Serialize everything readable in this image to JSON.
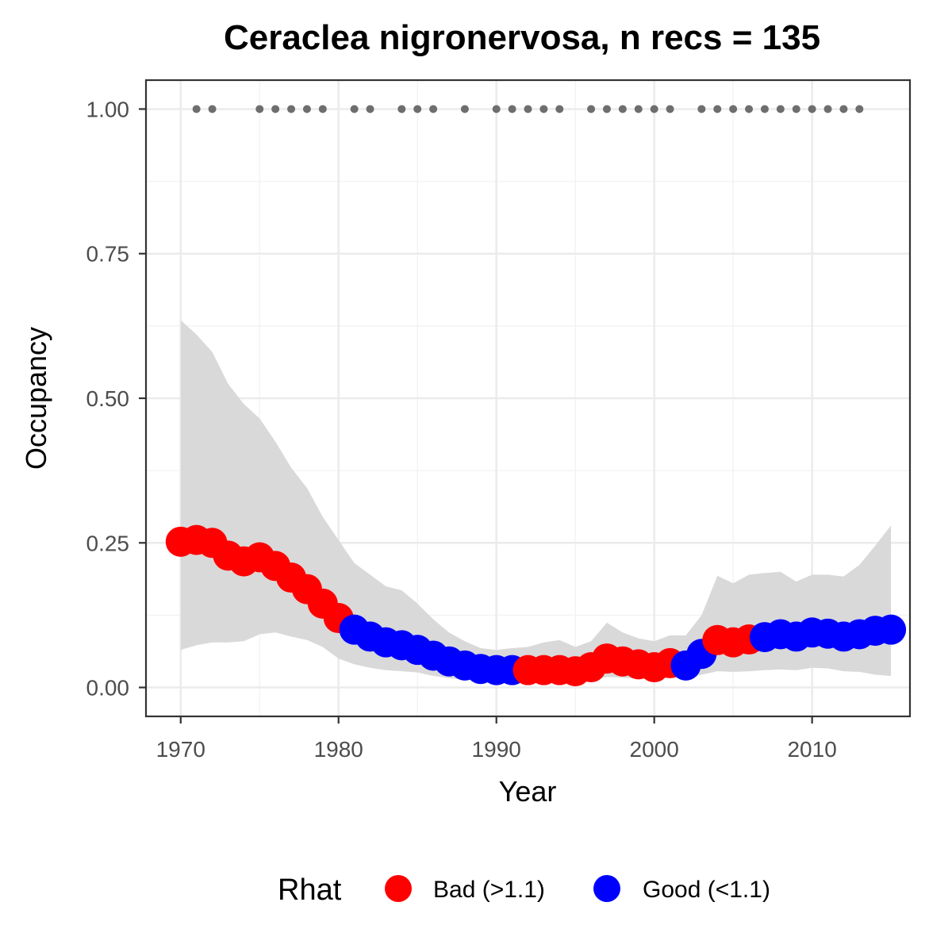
{
  "chart_data": {
    "type": "scatter",
    "title": "Ceraclea nigronervosa, n recs = 135",
    "xlabel": "Year",
    "ylabel": "Occupancy",
    "xlim": [
      1967.8,
      2016.2
    ],
    "ylim": [
      -0.05,
      1.05
    ],
    "x_ticks": [
      1970,
      1980,
      1990,
      2000,
      2010
    ],
    "x_tick_labels": [
      "1970",
      "1980",
      "1990",
      "2000",
      "2010"
    ],
    "y_ticks": [
      0,
      0.25,
      0.5,
      0.75,
      1.0
    ],
    "y_tick_labels": [
      "0.00",
      "0.25",
      "0.50",
      "0.75",
      "1.00"
    ],
    "grid": true,
    "legend": {
      "title": "Rhat",
      "position": "bottom",
      "entries": [
        {
          "label": "Bad (>1.1)",
          "color": "#ff0000"
        },
        {
          "label": "Good (<1.1)",
          "color": "#0000ff"
        }
      ]
    },
    "colors": {
      "bad": "#ff0000",
      "good": "#0000ff",
      "ribbon": "#d9d9d9",
      "records": "#6e6e6e"
    },
    "series": [
      {
        "name": "Rhat",
        "x": [
          1970,
          1971,
          1972,
          1973,
          1974,
          1975,
          1976,
          1977,
          1978,
          1979,
          1980,
          1981,
          1982,
          1983,
          1984,
          1985,
          1986,
          1987,
          1988,
          1989,
          1990,
          1991,
          1992,
          1993,
          1994,
          1995,
          1996,
          1997,
          1998,
          1999,
          2000,
          2001,
          2002,
          2003,
          2004,
          2005,
          2006,
          2007,
          2008,
          2009,
          2010,
          2011,
          2012,
          2013,
          2014,
          2015
        ],
        "y": [
          0.252,
          0.255,
          0.25,
          0.228,
          0.218,
          0.225,
          0.21,
          0.19,
          0.17,
          0.145,
          0.12,
          0.1,
          0.088,
          0.078,
          0.073,
          0.065,
          0.055,
          0.045,
          0.038,
          0.032,
          0.03,
          0.03,
          0.03,
          0.03,
          0.03,
          0.028,
          0.035,
          0.05,
          0.045,
          0.04,
          0.035,
          0.042,
          0.038,
          0.058,
          0.082,
          0.078,
          0.083,
          0.087,
          0.092,
          0.088,
          0.095,
          0.093,
          0.088,
          0.092,
          0.098,
          0.1
        ],
        "status": [
          "Bad",
          "Bad",
          "Bad",
          "Bad",
          "Bad",
          "Bad",
          "Bad",
          "Bad",
          "Bad",
          "Bad",
          "Bad",
          "Good",
          "Good",
          "Good",
          "Good",
          "Good",
          "Good",
          "Good",
          "Good",
          "Good",
          "Good",
          "Good",
          "Bad",
          "Bad",
          "Bad",
          "Bad",
          "Bad",
          "Bad",
          "Bad",
          "Bad",
          "Bad",
          "Bad",
          "Good",
          "Good",
          "Bad",
          "Bad",
          "Bad",
          "Good",
          "Good",
          "Good",
          "Good",
          "Good",
          "Good",
          "Good",
          "Good",
          "Good"
        ],
        "lower": [
          0.065,
          0.073,
          0.078,
          0.078,
          0.08,
          0.092,
          0.095,
          0.088,
          0.082,
          0.07,
          0.05,
          0.04,
          0.034,
          0.03,
          0.028,
          0.026,
          0.02,
          0.016,
          0.013,
          0.012,
          0.012,
          0.013,
          0.013,
          0.013,
          0.012,
          0.011,
          0.013,
          0.018,
          0.017,
          0.015,
          0.014,
          0.017,
          0.016,
          0.022,
          0.028,
          0.027,
          0.028,
          0.03,
          0.031,
          0.03,
          0.034,
          0.033,
          0.028,
          0.027,
          0.022,
          0.02
        ],
        "upper": [
          0.635,
          0.61,
          0.58,
          0.525,
          0.49,
          0.465,
          0.425,
          0.38,
          0.345,
          0.295,
          0.255,
          0.215,
          0.195,
          0.175,
          0.168,
          0.145,
          0.118,
          0.095,
          0.08,
          0.068,
          0.065,
          0.068,
          0.07,
          0.078,
          0.082,
          0.07,
          0.08,
          0.112,
          0.095,
          0.085,
          0.08,
          0.09,
          0.09,
          0.125,
          0.193,
          0.18,
          0.195,
          0.198,
          0.2,
          0.183,
          0.195,
          0.195,
          0.192,
          0.212,
          0.245,
          0.28
        ]
      },
      {
        "name": "Records",
        "x": [
          1971,
          1972,
          1975,
          1976,
          1977,
          1978,
          1979,
          1981,
          1982,
          1984,
          1985,
          1986,
          1988,
          1990,
          1991,
          1992,
          1993,
          1994,
          1996,
          1997,
          1998,
          1999,
          2000,
          2001,
          2003,
          2004,
          2005,
          2006,
          2007,
          2008,
          2009,
          2010,
          2011,
          2012,
          2013
        ],
        "y": 1.0
      }
    ]
  }
}
